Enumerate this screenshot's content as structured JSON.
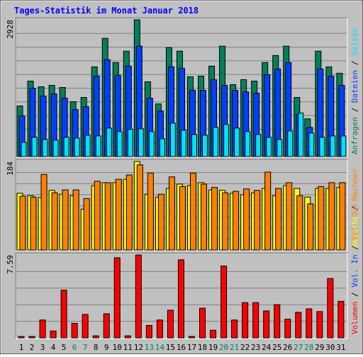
{
  "title": "Tages-Statistik im Monat Januar 2018",
  "legend_separator": "/",
  "categories": [
    "1",
    "2",
    "3",
    "4",
    "5",
    "6",
    "7",
    "8",
    "9",
    "10",
    "11",
    "12",
    "13",
    "14",
    "15",
    "16",
    "17",
    "18",
    "19",
    "20",
    "21",
    "22",
    "23",
    "24",
    "25",
    "26",
    "27",
    "28",
    "29",
    "30",
    "31"
  ],
  "weekend_indices": [
    5,
    6,
    12,
    13,
    19,
    20,
    26,
    27
  ],
  "weekday_label_color": "#000000",
  "weekend_label_color": "#00805c",
  "chart_data": [
    {
      "type": "bar",
      "ylim": [
        0,
        2928
      ],
      "yticks": [
        2928
      ],
      "grid_divisions": 10,
      "series": [
        {
          "name": "Anfragen",
          "color": "#00805c",
          "values": [
            1083,
            1616,
            1494,
            1525,
            1479,
            1174,
            1266,
            1921,
            2531,
            2013,
            2257,
            2928,
            1601,
            1128,
            2333,
            2257,
            1708,
            1723,
            1937,
            2364,
            1540,
            1647,
            1616,
            2013,
            2165,
            2364,
            1266,
            808,
            2257,
            1921,
            1784
          ]
        },
        {
          "name": "Dateien",
          "color": "#0040ff",
          "values": [
            869,
            1464,
            1296,
            1342,
            1250,
            1006,
            1067,
            1723,
            2074,
            1738,
            1937,
            2364,
            1250,
            976,
            1921,
            1891,
            1418,
            1418,
            1647,
            1525,
            1418,
            1387,
            1357,
            1754,
            1876,
            2013,
            900,
            625,
            1876,
            1723,
            1525
          ]
        },
        {
          "name": "Seiten",
          "color": "#00e0ff",
          "values": [
            305,
            412,
            366,
            351,
            412,
            396,
            457,
            442,
            610,
            534,
            580,
            595,
            534,
            381,
            717,
            564,
            473,
            457,
            625,
            686,
            610,
            534,
            473,
            412,
            366,
            549,
            930,
            503,
            412,
            442,
            442
          ]
        }
      ]
    },
    {
      "type": "bar",
      "ylim": [
        0,
        184
      ],
      "yticks": [
        184
      ],
      "grid_divisions": 8,
      "series": [
        {
          "name": "Besuche",
          "color": "#ffff00",
          "values": [
            118,
            113,
            109,
            124,
            116,
            113,
            85,
            134,
            140,
            140,
            147,
            184,
            116,
            110,
            128,
            137,
            134,
            140,
            125,
            124,
            118,
            115,
            119,
            128,
            113,
            134,
            128,
            110,
            128,
            128,
            130
          ]
        },
        {
          "name": "Rechner",
          "color": "#ff8000",
          "values": [
            112,
            110,
            157,
            119,
            125,
            125,
            107,
            143,
            140,
            147,
            156,
            177,
            160,
            116,
            152,
            132,
            160,
            137,
            130,
            119,
            122,
            127,
            124,
            162,
            128,
            140,
            113,
            96,
            132,
            140,
            140
          ]
        }
      ]
    },
    {
      "type": "bar",
      "ylim": [
        0,
        7.59
      ],
      "yticks": [
        7.59
      ],
      "grid_divisions": 5,
      "series": [
        {
          "name": "Volumen",
          "color": "#ff0000",
          "values": [
            0.13,
            0.13,
            1.64,
            0.63,
            4.37,
            1.33,
            2.15,
            0.19,
            2.21,
            7.34,
            0.19,
            7.59,
            1.14,
            1.64,
            2.53,
            7.15,
            0.13,
            2.72,
            0.7,
            6.58,
            1.64,
            3.23,
            3.23,
            2.47,
            3.04,
            1.71,
            2.34,
            2.66,
            2.41,
            5.44,
            3.35
          ]
        }
      ],
      "legend_extra": [
        {
          "name": "Vol. In",
          "color": "#0040ff"
        },
        {
          "name": "Vol. Out",
          "color": "#ff8000"
        }
      ]
    }
  ]
}
